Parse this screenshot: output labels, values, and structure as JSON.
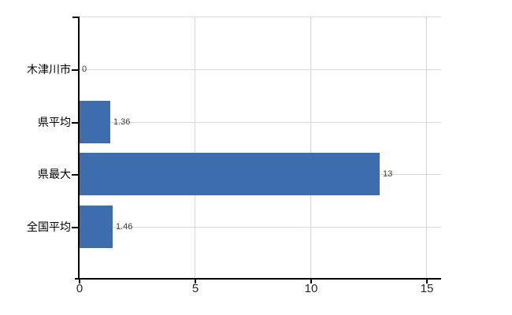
{
  "chart_data": {
    "type": "bar",
    "orientation": "horizontal",
    "title": "",
    "xlabel": "",
    "ylabel": "",
    "categories": [
      "木津川市",
      "県平均",
      "県最大",
      "全国平均"
    ],
    "values": [
      0,
      1.36,
      13,
      1.46
    ],
    "value_labels": [
      "0",
      "1.36",
      "13",
      "1.46"
    ],
    "xlim": [
      0,
      15
    ],
    "x_ticks": [
      0,
      5,
      10,
      15
    ],
    "x_tick_labels": [
      "0",
      "5",
      "10",
      "15"
    ],
    "grid": true,
    "legend": false,
    "colors": {
      "bar": "#3d6dad",
      "vertical_grid": "#d9d6d9",
      "horizontal_grid": "#d5dad1",
      "top_border": "#dcdadc",
      "axis": "#000000",
      "category_label": "#000000",
      "value_label": "#3a3a3a",
      "tick_label": "#262626",
      "background": "#ffffff"
    }
  }
}
